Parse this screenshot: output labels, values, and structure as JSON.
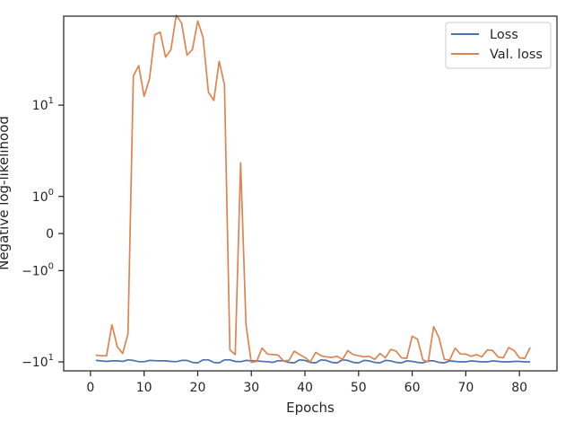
{
  "chart_data": {
    "type": "line",
    "xlabel": "Epochs",
    "ylabel": "Negative log-likelihood",
    "x_ticks": [
      0,
      10,
      20,
      30,
      40,
      50,
      60,
      70,
      80
    ],
    "y_scale": "symlog",
    "y_ticks": [
      {
        "value": -10,
        "label_base": "−10",
        "label_exp": "1"
      },
      {
        "value": -1,
        "label_base": "−10",
        "label_exp": "0"
      },
      {
        "value": 0,
        "label_base": "0",
        "label_exp": ""
      },
      {
        "value": 1,
        "label_base": "10",
        "label_exp": "0"
      },
      {
        "value": 10,
        "label_base": "10",
        "label_exp": "1"
      }
    ],
    "xlim": [
      -5,
      87
    ],
    "ylim": [
      -12,
      57
    ],
    "grid": false,
    "legend_position": "top-right",
    "colors": {
      "loss": "#4c72b0",
      "val_loss": "#dd8452"
    },
    "x": [
      1,
      2,
      3,
      4,
      5,
      6,
      7,
      8,
      9,
      10,
      11,
      12,
      13,
      14,
      15,
      16,
      17,
      18,
      19,
      20,
      21,
      22,
      23,
      24,
      25,
      26,
      27,
      28,
      29,
      30,
      31,
      32,
      33,
      34,
      35,
      36,
      37,
      38,
      39,
      40,
      41,
      42,
      43,
      44,
      45,
      46,
      47,
      48,
      49,
      50,
      51,
      52,
      53,
      54,
      55,
      56,
      57,
      58,
      59,
      60,
      61,
      62,
      63,
      64,
      65,
      66,
      67,
      68,
      69,
      70,
      71,
      72,
      73,
      74,
      75,
      76,
      77,
      78,
      79,
      80,
      81,
      82
    ],
    "series": [
      {
        "name": "Loss",
        "color": "#4c72b0",
        "values": [
          -9.7,
          -9.8,
          -9.9,
          -9.8,
          -9.8,
          -9.9,
          -9.6,
          -9.7,
          -9.95,
          -9.95,
          -9.7,
          -9.75,
          -9.8,
          -9.8,
          -9.9,
          -9.95,
          -9.7,
          -9.7,
          -10.1,
          -10.2,
          -9.6,
          -9.6,
          -10.1,
          -10.2,
          -9.6,
          -9.6,
          -9.9,
          -9.95,
          -9.7,
          -9.8,
          -9.8,
          -9.9,
          -9.95,
          -10.1,
          -9.75,
          -9.8,
          -10.1,
          -10.2,
          -9.6,
          -9.7,
          -10.1,
          -10.2,
          -9.6,
          -9.7,
          -10.1,
          -10.2,
          -9.6,
          -9.7,
          -10.1,
          -10.2,
          -9.7,
          -9.8,
          -10.1,
          -10.2,
          -9.7,
          -9.8,
          -10.1,
          -10.2,
          -9.8,
          -9.9,
          -10.1,
          -10.2,
          -9.8,
          -9.8,
          -10.1,
          -10.2,
          -9.8,
          -9.9,
          -10.0,
          -10.0,
          -9.8,
          -9.9,
          -10.0,
          -10.0,
          -9.8,
          -9.9,
          -10.0,
          -10.0,
          -9.9,
          -9.9,
          -10.0,
          -10.0
        ]
      },
      {
        "name": "Val. loss",
        "color": "#dd8452",
        "values": [
          -8.7,
          -8.8,
          -8.8,
          -4.5,
          -7.3,
          -8.4,
          -5.5,
          18,
          22,
          12,
          17,
          40,
          42,
          26,
          30,
          58,
          50,
          27,
          30,
          52,
          38,
          13,
          11,
          24,
          15,
          -7.8,
          -8.6,
          2.75,
          -4.5,
          -10.1,
          -9.9,
          -7.5,
          -8.5,
          -8.6,
          -8.7,
          -9.8,
          -9.7,
          -8.0,
          -8.6,
          -9.1,
          -10.0,
          -8.2,
          -8.8,
          -9.0,
          -9.1,
          -8.9,
          -9.5,
          -7.9,
          -8.6,
          -8.8,
          -9.0,
          -8.9,
          -9.5,
          -8.4,
          -9.2,
          -7.7,
          -8.0,
          -9.2,
          -9.3,
          -5.8,
          -6.2,
          -9.6,
          -10.0,
          -4.7,
          -6.0,
          -9.5,
          -9.6,
          -7.5,
          -8.5,
          -8.5,
          -8.9,
          -8.6,
          -9.0,
          -7.8,
          -7.9,
          -9.0,
          -9.2,
          -7.4,
          -7.9,
          -9.2,
          -9.3,
          -7.4
        ]
      }
    ]
  }
}
